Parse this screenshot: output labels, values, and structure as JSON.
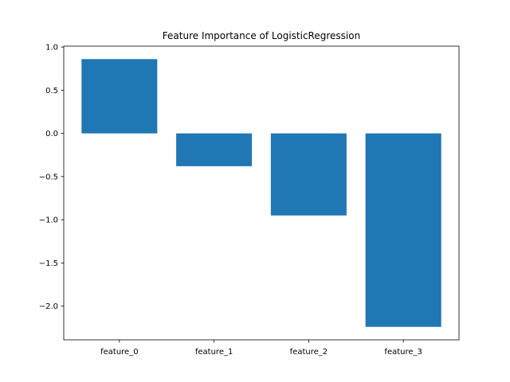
{
  "chart_data": {
    "type": "bar",
    "title": "Feature Importance of LogisticRegression",
    "xlabel": "",
    "ylabel": "",
    "categories": [
      "feature_0",
      "feature_1",
      "feature_2",
      "feature_3"
    ],
    "values": [
      0.86,
      -0.38,
      -0.95,
      -2.24
    ],
    "ylim": [
      -2.39,
      1.01
    ],
    "yticks": [
      1.0,
      0.5,
      0.0,
      -0.5,
      -1.0,
      -1.5,
      -2.0
    ],
    "ytick_labels": [
      "1.0",
      "0.5",
      "0.0",
      "−0.5",
      "−1.0",
      "−1.5",
      "−2.0"
    ],
    "grid": false,
    "bar_color": "#1f77b4"
  }
}
